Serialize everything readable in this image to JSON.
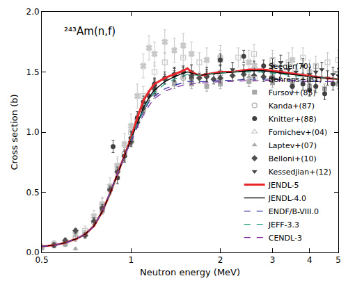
{
  "chart_data": {
    "type": "scatter",
    "title": "²⁴³Am(n,f)",
    "x_label": "Neutron energy (MeV)",
    "y_label": "Cross section (b)",
    "log": "x",
    "grid": false,
    "legend": "bottom right",
    "xlim": [
      0.5,
      5
    ],
    "xticks": [
      0.5,
      1,
      2,
      3,
      4,
      5
    ],
    "ylim": [
      0,
      2
    ],
    "yticks": [
      {
        "value": 0,
        "label": "0.0"
      },
      {
        "value": 0.5,
        "label": "0.5"
      },
      {
        "value": 1,
        "label": "1.0"
      },
      {
        "value": 1.5,
        "label": "1.5"
      },
      {
        "value": 2,
        "label": "2.0"
      }
    ],
    "series": [
      {
        "name": "Seeger(70)",
        "type": "scatter",
        "marker": "x",
        "color": "#c8c8c8",
        "x": [
          0.55,
          0.65,
          0.75,
          0.8,
          0.85,
          0.9,
          0.95,
          1.0,
          1.05,
          1.1,
          1.15,
          1.2,
          1.3,
          1.4,
          1.5,
          1.6,
          1.8,
          2.0,
          2.5,
          3.0,
          3.5,
          4.0
        ],
        "values": [
          0.07,
          0.15,
          0.3,
          0.4,
          0.55,
          0.72,
          0.9,
          1.05,
          1.3,
          1.55,
          1.7,
          1.65,
          1.75,
          1.68,
          1.72,
          1.65,
          1.6,
          1.62,
          1.58,
          1.55,
          1.6,
          1.5
        ],
        "errors": [
          0.03,
          0.04,
          0.05,
          0.06,
          0.07,
          0.08,
          0.09,
          0.1,
          0.1,
          0.1,
          0.1,
          0.1,
          0.1,
          0.1,
          0.1,
          0.1,
          0.1,
          0.1,
          0.1,
          0.1,
          0.1,
          0.1
        ]
      },
      {
        "name": "Behrens+(81)",
        "type": "scatter",
        "marker": "square-open",
        "color": "#c8c8c8",
        "x": [
          0.7,
          0.8,
          0.9,
          1.0,
          1.1,
          1.2,
          1.3,
          1.5,
          1.7,
          2.0,
          2.3,
          2.6,
          3.0,
          3.4,
          3.8,
          4.2,
          4.6,
          5.0
        ],
        "values": [
          0.18,
          0.4,
          0.72,
          1.0,
          1.3,
          1.5,
          1.58,
          1.62,
          1.58,
          1.6,
          1.62,
          1.65,
          1.6,
          1.58,
          1.62,
          1.55,
          1.58,
          1.6
        ],
        "errors": [
          0.04,
          0.05,
          0.06,
          0.07,
          0.08,
          0.08,
          0.08,
          0.08,
          0.08,
          0.08,
          0.08,
          0.08,
          0.08,
          0.08,
          0.08,
          0.08,
          0.08,
          0.08
        ]
      },
      {
        "name": "Fursov+(85)",
        "type": "scatter",
        "marker": "square",
        "color": "#a8a8a8",
        "x": [
          0.5,
          0.6,
          0.7,
          0.8,
          0.9,
          1.0,
          1.1,
          1.2,
          1.4,
          1.6,
          1.8,
          2.0,
          2.5,
          3.0,
          3.5,
          4.0,
          4.5,
          5.0
        ],
        "values": [
          0.04,
          0.07,
          0.15,
          0.35,
          0.68,
          0.92,
          1.18,
          1.32,
          1.4,
          1.4,
          1.38,
          1.4,
          1.42,
          1.41,
          1.4,
          1.38,
          1.36,
          1.4
        ],
        "errors": [
          0.02,
          0.02,
          0.02,
          0.03,
          0.04,
          0.04,
          0.04,
          0.04,
          0.04,
          0.04,
          0.04,
          0.04,
          0.04,
          0.04,
          0.04,
          0.04,
          0.04,
          0.04
        ]
      },
      {
        "name": "Kanda+(87)",
        "type": "scatter",
        "marker": "circle-open",
        "color": "#a8a8a8",
        "x": [
          0.55,
          0.65,
          0.75,
          0.85,
          0.95,
          1.05,
          1.2,
          1.5,
          2.0,
          3.0
        ],
        "values": [
          0.06,
          0.12,
          0.25,
          0.52,
          0.82,
          1.1,
          1.38,
          1.45,
          1.44,
          1.46
        ],
        "errors": [
          0.02,
          0.03,
          0.03,
          0.04,
          0.05,
          0.05,
          0.05,
          0.05,
          0.05,
          0.05
        ]
      },
      {
        "name": "Knitter+(88)",
        "type": "scatter",
        "marker": "circle",
        "color": "#404040",
        "x": [
          0.6,
          0.7,
          0.8,
          0.87,
          0.9,
          0.95,
          1.0,
          1.05,
          1.1,
          1.2,
          1.3,
          1.4,
          1.5,
          1.6,
          1.8,
          2.0,
          2.4,
          2.8,
          3.2,
          3.5,
          3.8,
          4.0,
          4.2,
          4.5,
          4.8
        ],
        "values": [
          0.08,
          0.15,
          0.36,
          0.88,
          0.62,
          0.8,
          0.95,
          1.12,
          1.25,
          1.4,
          1.45,
          1.48,
          1.5,
          1.45,
          1.47,
          1.6,
          1.63,
          1.55,
          1.5,
          1.38,
          1.4,
          1.35,
          1.38,
          1.32,
          1.4
        ],
        "errors": [
          0.02,
          0.03,
          0.04,
          0.05,
          0.05,
          0.05,
          0.05,
          0.05,
          0.05,
          0.05,
          0.05,
          0.05,
          0.05,
          0.05,
          0.05,
          0.05,
          0.05,
          0.05,
          0.05,
          0.05,
          0.05,
          0.05,
          0.05,
          0.05,
          0.05
        ]
      },
      {
        "name": "Fomichev+(04)",
        "type": "scatter",
        "marker": "triangle-up-open",
        "color": "#c8c8c8",
        "x": [
          0.5,
          0.6,
          0.7,
          0.8,
          0.9,
          1.0,
          1.1,
          1.2,
          1.5,
          2.0,
          3.0,
          4.0,
          5.0
        ],
        "values": [
          0.05,
          0.08,
          0.16,
          0.37,
          0.7,
          0.93,
          1.2,
          1.35,
          1.47,
          1.48,
          1.5,
          1.45,
          1.42
        ],
        "errors": [
          0.02,
          0.02,
          0.02,
          0.03,
          0.03,
          0.03,
          0.03,
          0.03,
          0.03,
          0.03,
          0.03,
          0.03,
          0.03
        ]
      },
      {
        "name": "Laptev+(07)",
        "type": "scatter",
        "marker": "triangle-up",
        "color": "#a8a8a8",
        "x": [
          0.5,
          0.55,
          0.6,
          0.65,
          0.7,
          0.8,
          0.9,
          1.0,
          1.1,
          1.2,
          1.4,
          1.6,
          2.0,
          2.5,
          3.0,
          4.0,
          5.0
        ],
        "values": [
          0.03,
          0.05,
          0.07,
          0.03,
          0.14,
          0.34,
          0.66,
          0.92,
          1.18,
          1.33,
          1.42,
          1.44,
          1.45,
          1.46,
          1.45,
          1.43,
          1.42
        ],
        "errors": [
          0.01,
          0.01,
          0.01,
          0.01,
          0.02,
          0.02,
          0.02,
          0.02,
          0.02,
          0.02,
          0.02,
          0.02,
          0.02,
          0.02,
          0.02,
          0.02,
          0.02
        ]
      },
      {
        "name": "Belloni+(10)",
        "type": "scatter",
        "marker": "diamond",
        "color": "#505050",
        "x": [
          0.55,
          0.6,
          0.65,
          0.7,
          0.75,
          0.8,
          0.85,
          0.9,
          0.95,
          1.0,
          1.05,
          1.1,
          1.15,
          1.2,
          1.3,
          1.4,
          1.5,
          1.6,
          1.7,
          1.8,
          1.9,
          2.0,
          2.2,
          2.4,
          2.6,
          2.8,
          3.0
        ],
        "values": [
          0.06,
          0.1,
          0.18,
          0.14,
          0.26,
          0.37,
          0.52,
          0.67,
          0.8,
          0.92,
          1.08,
          1.2,
          1.3,
          1.36,
          1.44,
          1.47,
          1.5,
          1.47,
          1.45,
          1.46,
          1.44,
          1.45,
          1.47,
          1.48,
          1.47,
          1.46,
          1.45
        ],
        "errors": [
          0.02,
          0.02,
          0.02,
          0.02,
          0.03,
          0.03,
          0.03,
          0.04,
          0.04,
          0.04,
          0.04,
          0.04,
          0.04,
          0.04,
          0.04,
          0.04,
          0.04,
          0.04,
          0.04,
          0.04,
          0.04,
          0.04,
          0.04,
          0.04,
          0.04,
          0.04,
          0.04
        ]
      },
      {
        "name": "Kessedjian+(12)",
        "type": "scatter",
        "marker": "triangle-down",
        "color": "#404040",
        "x": [
          1.0,
          1.2,
          1.4,
          1.6,
          1.8,
          2.0,
          2.2,
          2.4,
          2.6,
          2.8,
          3.0,
          3.2,
          3.4,
          3.6,
          3.8,
          4.0,
          4.2,
          4.4,
          4.6,
          4.8,
          5.0
        ],
        "values": [
          0.95,
          1.38,
          1.48,
          1.5,
          1.48,
          1.5,
          1.52,
          1.5,
          1.53,
          1.5,
          1.55,
          1.58,
          1.52,
          1.5,
          1.55,
          1.48,
          1.5,
          1.52,
          1.45,
          1.48,
          1.47
        ],
        "errors": [
          0.06,
          0.06,
          0.06,
          0.06,
          0.06,
          0.06,
          0.06,
          0.06,
          0.06,
          0.06,
          0.06,
          0.06,
          0.06,
          0.06,
          0.06,
          0.06,
          0.06,
          0.06,
          0.06,
          0.06,
          0.06
        ]
      },
      {
        "name": "JENDL-5",
        "type": "line",
        "line_style": "solid",
        "color": "#e8262a",
        "x": [
          0.5,
          0.55,
          0.6,
          0.65,
          0.7,
          0.75,
          0.8,
          0.85,
          0.9,
          0.95,
          1.0,
          1.05,
          1.1,
          1.15,
          1.2,
          1.3,
          1.4,
          1.5,
          1.55,
          1.6,
          1.7,
          1.8,
          2.0,
          2.2,
          2.5,
          2.8,
          3.0,
          3.5,
          4.0,
          4.5,
          5.0
        ],
        "values": [
          0.05,
          0.06,
          0.08,
          0.11,
          0.15,
          0.22,
          0.34,
          0.49,
          0.65,
          0.8,
          0.95,
          1.12,
          1.26,
          1.34,
          1.4,
          1.45,
          1.48,
          1.51,
          1.53,
          1.5,
          1.47,
          1.48,
          1.5,
          1.5,
          1.52,
          1.52,
          1.51,
          1.49,
          1.47,
          1.45,
          1.44
        ]
      },
      {
        "name": "JENDL-4.0",
        "type": "line",
        "line_style": "solid",
        "color": "#000000",
        "x": [
          0.5,
          0.55,
          0.6,
          0.65,
          0.7,
          0.75,
          0.8,
          0.85,
          0.9,
          0.95,
          1.0,
          1.05,
          1.1,
          1.15,
          1.2,
          1.3,
          1.4,
          1.5,
          1.55,
          1.6,
          1.7,
          1.8,
          2.0,
          2.2,
          2.5,
          2.8,
          3.0,
          3.5,
          4.0,
          4.5,
          5.0
        ],
        "values": [
          0.05,
          0.06,
          0.08,
          0.11,
          0.15,
          0.22,
          0.34,
          0.49,
          0.65,
          0.8,
          0.94,
          1.08,
          1.2,
          1.29,
          1.35,
          1.42,
          1.46,
          1.49,
          1.5,
          1.49,
          1.47,
          1.48,
          1.49,
          1.5,
          1.51,
          1.51,
          1.5,
          1.48,
          1.46,
          1.45,
          1.44
        ]
      },
      {
        "name": "ENDF/B-VIII.0",
        "type": "line",
        "line_style": "dash",
        "color": "#3030a0",
        "x": [
          0.5,
          0.55,
          0.6,
          0.65,
          0.7,
          0.75,
          0.8,
          0.85,
          0.9,
          0.95,
          1.0,
          1.05,
          1.1,
          1.15,
          1.2,
          1.3,
          1.4,
          1.5,
          1.55,
          1.6,
          1.7,
          1.8,
          2.0,
          2.2,
          2.5,
          2.8,
          3.0,
          3.5,
          4.0,
          4.5,
          5.0
        ],
        "values": [
          0.05,
          0.06,
          0.08,
          0.11,
          0.15,
          0.22,
          0.34,
          0.5,
          0.66,
          0.8,
          0.93,
          1.06,
          1.17,
          1.25,
          1.3,
          1.36,
          1.39,
          1.41,
          1.42,
          1.42,
          1.42,
          1.42,
          1.43,
          1.43,
          1.44,
          1.44,
          1.44,
          1.43,
          1.42,
          1.42,
          1.42
        ]
      },
      {
        "name": "JEFF-3.3",
        "type": "line",
        "line_style": "dash",
        "color": "#20a080",
        "x": [
          0.5,
          0.55,
          0.6,
          0.65,
          0.7,
          0.75,
          0.8,
          0.85,
          0.9,
          0.95,
          1.0,
          1.05,
          1.1,
          1.15,
          1.2,
          1.3,
          1.4,
          1.5,
          1.55,
          1.6,
          1.7,
          1.8,
          2.0,
          2.2,
          2.5,
          2.8,
          3.0,
          3.5,
          4.0,
          4.5,
          5.0
        ],
        "values": [
          0.05,
          0.06,
          0.08,
          0.11,
          0.15,
          0.22,
          0.34,
          0.49,
          0.65,
          0.8,
          0.94,
          1.07,
          1.18,
          1.27,
          1.33,
          1.4,
          1.44,
          1.47,
          1.48,
          1.48,
          1.47,
          1.48,
          1.49,
          1.5,
          1.5,
          1.5,
          1.49,
          1.47,
          1.46,
          1.45,
          1.44
        ]
      },
      {
        "name": "CENDL-3",
        "type": "line",
        "line_style": "dash",
        "color": "#8030a0",
        "x": [
          0.5,
          0.55,
          0.6,
          0.65,
          0.7,
          0.75,
          0.8,
          0.85,
          0.9,
          0.95,
          1.0,
          1.05,
          1.1,
          1.15,
          1.2,
          1.3,
          1.4,
          1.5,
          1.55,
          1.6,
          1.7,
          1.8,
          2.0,
          2.2,
          2.5,
          2.8,
          3.0,
          3.5,
          4.0,
          4.5,
          5.0
        ],
        "values": [
          0.05,
          0.06,
          0.08,
          0.11,
          0.15,
          0.22,
          0.34,
          0.5,
          0.66,
          0.8,
          0.92,
          1.04,
          1.14,
          1.22,
          1.28,
          1.34,
          1.37,
          1.39,
          1.4,
          1.4,
          1.41,
          1.41,
          1.42,
          1.42,
          1.43,
          1.43,
          1.43,
          1.43,
          1.42,
          1.42,
          1.42
        ]
      }
    ]
  }
}
